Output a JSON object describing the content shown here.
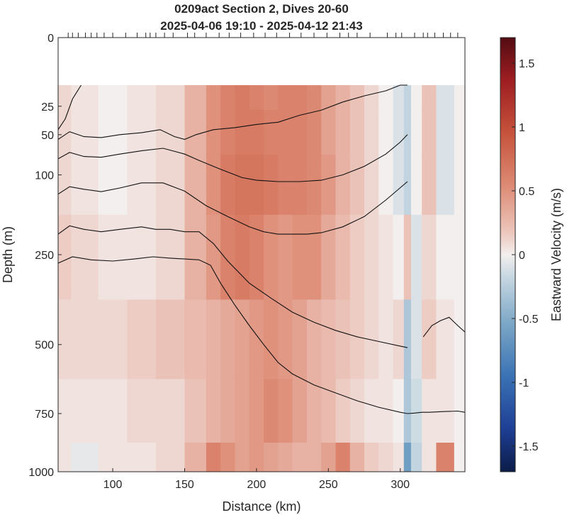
{
  "chart_data": {
    "type": "heatmap",
    "title_line1": "0209act Section 2, Dives 20-60",
    "title_line2": "2025-04-06 19:10 - 2025-04-12 21:43",
    "xlabel": "Distance (km)",
    "ylabel": "Depth (m)",
    "colorbar_label": "Eastward Velocity (m/s)",
    "xlim": [
      62,
      345
    ],
    "ylim_depth": [
      0,
      1000
    ],
    "depth_scale": "square-root (reversed)",
    "data_top_depth": 12,
    "clim": [
      -1.7,
      1.7
    ],
    "x_ticks": [
      100,
      150,
      200,
      250,
      300
    ],
    "x_tick_labels": [
      "100",
      "150",
      "200",
      "250",
      "300"
    ],
    "y_ticks": [
      0,
      25,
      50,
      100,
      250,
      500,
      750,
      1000
    ],
    "y_tick_labels": [
      "0",
      "25",
      "50",
      "100",
      "250",
      "500",
      "750",
      "1000"
    ],
    "cbar_ticks": [
      -1.5,
      -1,
      -0.5,
      0,
      0.5,
      1,
      1.5
    ],
    "cbar_tick_labels": [
      "-1.5",
      "-1",
      "-0.5",
      "0",
      "0.5",
      "1",
      "1.5"
    ],
    "dive_marks_km": [
      69,
      72,
      76,
      81,
      85,
      89,
      94,
      100,
      109,
      117,
      123,
      126,
      130,
      136,
      142,
      152,
      157,
      165,
      174,
      181,
      189,
      198,
      206,
      214,
      223,
      231,
      240,
      249,
      258,
      264,
      270,
      279,
      291,
      297,
      301,
      310,
      316,
      319,
      324,
      330,
      335,
      340
    ],
    "velocity_samples": {
      "x_km": [
        62,
        80,
        100,
        120,
        140,
        160,
        170,
        180,
        190,
        200,
        210,
        220,
        230,
        240,
        250,
        260,
        270,
        280,
        290,
        300,
        305,
        310,
        320,
        330,
        345
      ],
      "depth_m": [
        12,
        50,
        100,
        250,
        500,
        750,
        1000
      ],
      "u_m_s": [
        [
          0.1,
          0.05,
          0.0,
          0.05,
          0.1,
          0.3,
          0.5,
          0.6,
          0.65,
          0.6,
          0.55,
          0.6,
          0.6,
          0.55,
          0.4,
          0.3,
          0.2,
          0.1,
          0.0,
          -0.1,
          -0.2,
          0.0,
          0.2,
          -0.1,
          0.0
        ],
        [
          0.1,
          0.05,
          0.0,
          0.05,
          0.1,
          0.3,
          0.5,
          0.6,
          0.65,
          0.65,
          0.6,
          0.6,
          0.6,
          0.55,
          0.4,
          0.3,
          0.2,
          0.1,
          0.0,
          -0.1,
          -0.2,
          0.0,
          0.2,
          -0.1,
          0.0
        ],
        [
          0.1,
          0.05,
          0.0,
          0.05,
          0.1,
          0.3,
          0.5,
          0.65,
          0.7,
          0.7,
          0.65,
          0.6,
          0.6,
          0.55,
          0.45,
          0.3,
          0.2,
          0.1,
          0.0,
          -0.1,
          -0.2,
          0.0,
          0.2,
          -0.1,
          0.0
        ],
        [
          0.15,
          0.1,
          0.05,
          0.05,
          0.1,
          0.3,
          0.45,
          0.6,
          0.65,
          0.6,
          0.5,
          0.45,
          0.5,
          0.5,
          0.35,
          0.25,
          0.15,
          0.1,
          0.05,
          0.0,
          0.2,
          -0.1,
          0.1,
          0.0,
          0.0
        ],
        [
          0.1,
          0.1,
          0.1,
          0.15,
          0.2,
          0.25,
          0.3,
          0.35,
          0.4,
          0.45,
          0.5,
          0.45,
          0.4,
          0.3,
          0.25,
          0.2,
          0.15,
          0.1,
          0.05,
          0.1,
          -0.3,
          -0.1,
          0.15,
          0.05,
          0.0
        ],
        [
          0.05,
          0.05,
          0.05,
          0.1,
          0.1,
          0.2,
          0.3,
          0.35,
          0.4,
          0.45,
          0.55,
          0.5,
          0.4,
          0.3,
          0.25,
          0.15,
          0.1,
          0.05,
          0.05,
          0.0,
          -0.3,
          -0.15,
          0.05,
          0.05,
          0.0
        ],
        [
          0.05,
          -0.05,
          0.05,
          0.05,
          0.1,
          0.3,
          0.6,
          0.5,
          0.4,
          0.45,
          0.4,
          0.35,
          0.3,
          0.3,
          0.4,
          0.6,
          0.3,
          0.15,
          0.1,
          0.05,
          -0.6,
          -0.2,
          0.05,
          0.6,
          0.0
        ]
      ]
    },
    "contours": [
      {
        "x": [
          62,
          67,
          72,
          78
        ],
        "depth": [
          45,
          35,
          20,
          12
        ]
      },
      {
        "x": [
          62,
          70,
          80,
          92,
          105,
          120,
          133,
          143,
          150,
          158,
          170,
          185,
          200,
          215,
          230,
          245,
          260,
          275,
          290,
          300,
          305
        ],
        "depth": [
          55,
          47,
          52,
          53,
          50,
          48,
          45,
          52,
          55,
          50,
          45,
          43,
          40,
          38,
          32,
          28,
          22,
          18,
          15,
          12,
          12
        ]
      },
      {
        "x": [
          62,
          70,
          80,
          92,
          105,
          120,
          135,
          150,
          160,
          175,
          190,
          200,
          215,
          230,
          245,
          260,
          275,
          290,
          300,
          305
        ],
        "depth": [
          78,
          70,
          75,
          76,
          72,
          68,
          65,
          72,
          80,
          92,
          104,
          108,
          110,
          110,
          108,
          100,
          88,
          72,
          58,
          50
        ]
      },
      {
        "x": [
          62,
          70,
          80,
          92,
          105,
          120,
          135,
          150,
          165,
          180,
          195,
          205,
          215,
          225,
          235,
          245,
          260,
          275,
          290,
          305
        ],
        "depth": [
          130,
          118,
          122,
          126,
          120,
          112,
          112,
          125,
          150,
          170,
          190,
          200,
          205,
          205,
          205,
          202,
          190,
          170,
          140,
          110
        ]
      },
      {
        "x": [
          62,
          70,
          80,
          92,
          105,
          120,
          130,
          140,
          150,
          160,
          170,
          180,
          195,
          210,
          225,
          240,
          255,
          270,
          285,
          300,
          305
        ],
        "depth": [
          205,
          188,
          195,
          200,
          195,
          190,
          195,
          195,
          200,
          200,
          225,
          265,
          320,
          360,
          400,
          430,
          455,
          475,
          490,
          505,
          510
        ]
      },
      {
        "x": [
          62,
          72,
          85,
          100,
          115,
          128,
          140,
          150,
          160,
          168,
          175,
          185,
          195,
          205,
          215,
          225,
          240,
          255,
          270,
          285,
          300,
          305
        ],
        "depth": [
          270,
          255,
          262,
          265,
          260,
          255,
          258,
          260,
          262,
          275,
          320,
          380,
          440,
          500,
          560,
          600,
          640,
          670,
          700,
          725,
          745,
          750
        ]
      },
      {
        "x": [
          316,
          322,
          328,
          334,
          340,
          345
        ],
        "depth": [
          475,
          440,
          425,
          415,
          440,
          460
        ]
      },
      {
        "x": [
          305,
          310,
          315,
          320,
          330,
          340,
          345
        ],
        "depth": [
          750,
          748,
          745,
          745,
          742,
          740,
          745
        ]
      }
    ]
  }
}
